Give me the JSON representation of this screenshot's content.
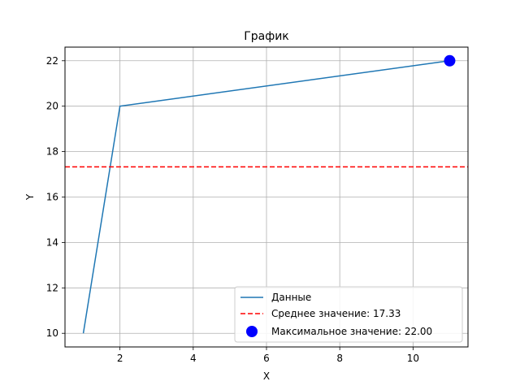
{
  "chart_data": {
    "type": "line",
    "title": "График",
    "xlabel": "X",
    "ylabel": "Y",
    "xlim": [
      0.5,
      11.5
    ],
    "ylim": [
      9.4,
      22.6
    ],
    "xticks": [
      2,
      4,
      6,
      8,
      10
    ],
    "yticks": [
      10,
      12,
      14,
      16,
      18,
      20,
      22
    ],
    "grid": true,
    "legend_position": "bottom-right",
    "series": [
      {
        "name": "Данные",
        "kind": "line",
        "color": "#1f77b4",
        "x": [
          1,
          2,
          11
        ],
        "y": [
          10,
          20,
          22
        ]
      }
    ],
    "mean_line": {
      "name": "Среднее значение: 17.33",
      "value": 17.33,
      "color": "#ff0000",
      "style": "dashed"
    },
    "max_point": {
      "name": "Максимальное значение: 22.00",
      "x": 11,
      "y": 22,
      "color": "#0000ff"
    }
  }
}
